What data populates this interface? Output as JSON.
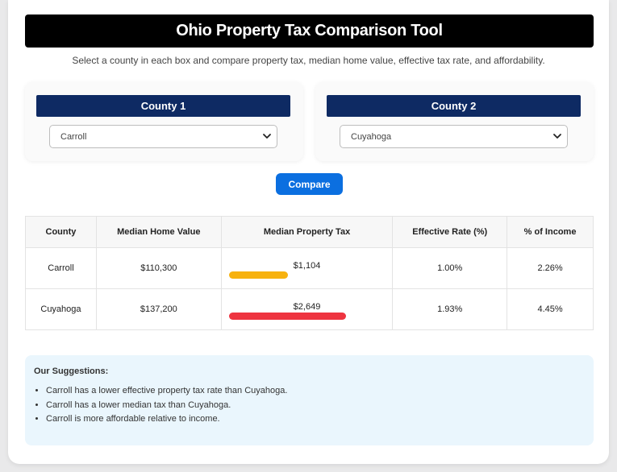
{
  "title": "Ohio Property Tax Comparison Tool",
  "subtitle": "Select a county in each box and compare property tax, median home value, effective tax rate, and affordability.",
  "county1": {
    "heading": "County 1",
    "selected": "Carroll"
  },
  "county2": {
    "heading": "County 2",
    "selected": "Cuyahoga"
  },
  "compare_label": "Compare",
  "table": {
    "headers": [
      "County",
      "Median Home Value",
      "Median Property Tax",
      "Effective Rate (%)",
      "% of Income"
    ],
    "rows": [
      {
        "county": "Carroll",
        "home_value": "$110,300",
        "property_tax": "$1,104",
        "tax_amount": 1104,
        "bar_color": "#f7b20f",
        "effective_rate": "1.00%",
        "pct_income": "2.26%"
      },
      {
        "county": "Cuyahoga",
        "home_value": "$137,200",
        "property_tax": "$2,649",
        "tax_amount": 2649,
        "bar_color": "#ee3440",
        "effective_rate": "1.93%",
        "pct_income": "4.45%"
      }
    ]
  },
  "suggestions": {
    "title": "Our Suggestions:",
    "items": [
      "Carroll has a lower effective property tax rate than Cuyahoga.",
      "Carroll has a lower median tax than Cuyahoga.",
      "Carroll is more affordable relative to income."
    ]
  },
  "colors": {
    "title_bg": "#000000",
    "header_bg": "#0e2a63",
    "button_bg": "#0b6fe0",
    "suggest_bg": "#eaf6fd"
  }
}
